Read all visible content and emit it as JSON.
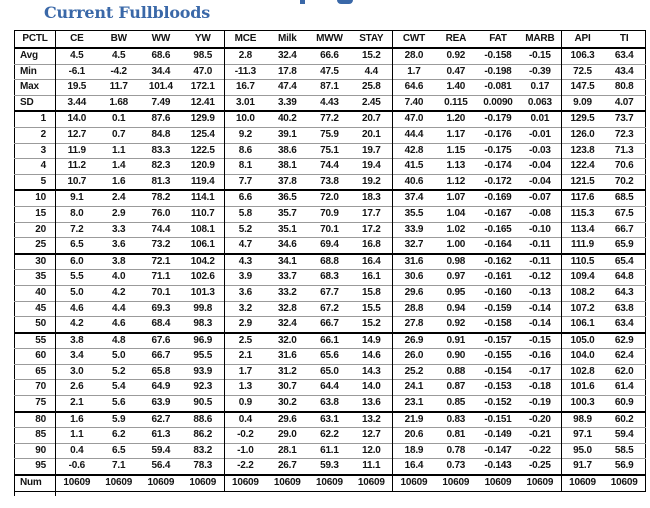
{
  "page": {
    "title": "Current Fullbloods"
  },
  "colors": {
    "title_blue": "#3a68a8",
    "table_text": "#141414",
    "group_border": "#000000",
    "row_border": "#9b9b9b"
  },
  "table": {
    "columns": [
      "PCTL",
      "CE",
      "BW",
      "WW",
      "YW",
      "MCE",
      "Milk",
      "MWW",
      "STAY",
      "CWT",
      "REA",
      "FAT",
      "MARB",
      "API",
      "TI"
    ],
    "rows": [
      {
        "label": "Avg",
        "values": [
          "4.5",
          "4.5",
          "68.6",
          "98.5",
          "2.8",
          "32.4",
          "66.6",
          "15.2",
          "28.0",
          "0.92",
          "-0.158",
          "-0.15",
          "106.3",
          "63.4"
        ]
      },
      {
        "label": "Min",
        "values": [
          "-6.1",
          "-4.2",
          "34.4",
          "47.0",
          "-11.3",
          "17.8",
          "47.5",
          "4.4",
          "1.7",
          "0.47",
          "-0.198",
          "-0.39",
          "72.5",
          "43.4"
        ]
      },
      {
        "label": "Max",
        "values": [
          "19.5",
          "11.7",
          "101.4",
          "172.1",
          "16.7",
          "47.4",
          "87.1",
          "25.8",
          "64.6",
          "1.40",
          "-0.081",
          "0.17",
          "147.5",
          "80.8"
        ]
      },
      {
        "label": "SD",
        "values": [
          "3.44",
          "1.68",
          "7.49",
          "12.41",
          "3.01",
          "3.39",
          "4.43",
          "2.45",
          "7.40",
          "0.115",
          "0.0090",
          "0.063",
          "9.09",
          "4.07"
        ]
      },
      {
        "label": "1",
        "group_start": true,
        "values": [
          "14.0",
          "0.1",
          "87.6",
          "129.9",
          "10.0",
          "40.2",
          "77.2",
          "20.7",
          "47.0",
          "1.20",
          "-0.179",
          "0.01",
          "129.5",
          "73.7"
        ]
      },
      {
        "label": "2",
        "values": [
          "12.7",
          "0.7",
          "84.8",
          "125.4",
          "9.2",
          "39.1",
          "75.9",
          "20.1",
          "44.4",
          "1.17",
          "-0.176",
          "-0.01",
          "126.0",
          "72.3"
        ]
      },
      {
        "label": "3",
        "values": [
          "11.9",
          "1.1",
          "83.3",
          "122.5",
          "8.6",
          "38.6",
          "75.1",
          "19.7",
          "42.8",
          "1.15",
          "-0.175",
          "-0.03",
          "123.8",
          "71.3"
        ]
      },
      {
        "label": "4",
        "values": [
          "11.2",
          "1.4",
          "82.3",
          "120.9",
          "8.1",
          "38.1",
          "74.4",
          "19.4",
          "41.5",
          "1.13",
          "-0.174",
          "-0.04",
          "122.4",
          "70.6"
        ]
      },
      {
        "label": "5",
        "values": [
          "10.7",
          "1.6",
          "81.3",
          "119.4",
          "7.7",
          "37.8",
          "73.8",
          "19.2",
          "40.6",
          "1.12",
          "-0.172",
          "-0.04",
          "121.5",
          "70.2"
        ]
      },
      {
        "label": "10",
        "group_start": true,
        "values": [
          "9.1",
          "2.4",
          "78.2",
          "114.1",
          "6.6",
          "36.5",
          "72.0",
          "18.3",
          "37.4",
          "1.07",
          "-0.169",
          "-0.07",
          "117.6",
          "68.5"
        ]
      },
      {
        "label": "15",
        "values": [
          "8.0",
          "2.9",
          "76.0",
          "110.7",
          "5.8",
          "35.7",
          "70.9",
          "17.7",
          "35.5",
          "1.04",
          "-0.167",
          "-0.08",
          "115.3",
          "67.5"
        ]
      },
      {
        "label": "20",
        "values": [
          "7.2",
          "3.3",
          "74.4",
          "108.1",
          "5.2",
          "35.1",
          "70.1",
          "17.2",
          "33.9",
          "1.02",
          "-0.165",
          "-0.10",
          "113.4",
          "66.7"
        ]
      },
      {
        "label": "25",
        "values": [
          "6.5",
          "3.6",
          "73.2",
          "106.1",
          "4.7",
          "34.6",
          "69.4",
          "16.8",
          "32.7",
          "1.00",
          "-0.164",
          "-0.11",
          "111.9",
          "65.9"
        ]
      },
      {
        "label": "30",
        "group_start": true,
        "values": [
          "6.0",
          "3.8",
          "72.1",
          "104.2",
          "4.3",
          "34.1",
          "68.8",
          "16.4",
          "31.6",
          "0.98",
          "-0.162",
          "-0.11",
          "110.5",
          "65.4"
        ]
      },
      {
        "label": "35",
        "values": [
          "5.5",
          "4.0",
          "71.1",
          "102.6",
          "3.9",
          "33.7",
          "68.3",
          "16.1",
          "30.6",
          "0.97",
          "-0.161",
          "-0.12",
          "109.4",
          "64.8"
        ]
      },
      {
        "label": "40",
        "values": [
          "5.0",
          "4.2",
          "70.1",
          "101.3",
          "3.6",
          "33.2",
          "67.7",
          "15.8",
          "29.6",
          "0.95",
          "-0.160",
          "-0.13",
          "108.2",
          "64.3"
        ]
      },
      {
        "label": "45",
        "values": [
          "4.6",
          "4.4",
          "69.3",
          "99.8",
          "3.2",
          "32.8",
          "67.2",
          "15.5",
          "28.8",
          "0.94",
          "-0.159",
          "-0.14",
          "107.2",
          "63.8"
        ]
      },
      {
        "label": "50",
        "values": [
          "4.2",
          "4.6",
          "68.4",
          "98.3",
          "2.9",
          "32.4",
          "66.7",
          "15.2",
          "27.8",
          "0.92",
          "-0.158",
          "-0.14",
          "106.1",
          "63.4"
        ]
      },
      {
        "label": "55",
        "group_start": true,
        "values": [
          "3.8",
          "4.8",
          "67.6",
          "96.9",
          "2.5",
          "32.0",
          "66.1",
          "14.9",
          "26.9",
          "0.91",
          "-0.157",
          "-0.15",
          "105.0",
          "62.9"
        ]
      },
      {
        "label": "60",
        "values": [
          "3.4",
          "5.0",
          "66.7",
          "95.5",
          "2.1",
          "31.6",
          "65.6",
          "14.6",
          "26.0",
          "0.90",
          "-0.155",
          "-0.16",
          "104.0",
          "62.4"
        ]
      },
      {
        "label": "65",
        "values": [
          "3.0",
          "5.2",
          "65.8",
          "93.9",
          "1.7",
          "31.2",
          "65.0",
          "14.3",
          "25.2",
          "0.88",
          "-0.154",
          "-0.17",
          "102.8",
          "62.0"
        ]
      },
      {
        "label": "70",
        "values": [
          "2.6",
          "5.4",
          "64.9",
          "92.3",
          "1.3",
          "30.7",
          "64.4",
          "14.0",
          "24.1",
          "0.87",
          "-0.153",
          "-0.18",
          "101.6",
          "61.4"
        ]
      },
      {
        "label": "75",
        "values": [
          "2.1",
          "5.6",
          "63.9",
          "90.5",
          "0.9",
          "30.2",
          "63.8",
          "13.6",
          "23.1",
          "0.85",
          "-0.152",
          "-0.19",
          "100.3",
          "60.9"
        ]
      },
      {
        "label": "80",
        "group_start": true,
        "values": [
          "1.6",
          "5.9",
          "62.7",
          "88.6",
          "0.4",
          "29.6",
          "63.1",
          "13.2",
          "21.9",
          "0.83",
          "-0.151",
          "-0.20",
          "98.9",
          "60.2"
        ]
      },
      {
        "label": "85",
        "values": [
          "1.1",
          "6.2",
          "61.3",
          "86.2",
          "-0.2",
          "29.0",
          "62.2",
          "12.7",
          "20.6",
          "0.81",
          "-0.149",
          "-0.21",
          "97.1",
          "59.4"
        ]
      },
      {
        "label": "90",
        "values": [
          "0.4",
          "6.5",
          "59.4",
          "83.2",
          "-1.0",
          "28.1",
          "61.1",
          "12.0",
          "18.9",
          "0.78",
          "-0.147",
          "-0.22",
          "95.0",
          "58.5"
        ]
      },
      {
        "label": "95",
        "values": [
          "-0.6",
          "7.1",
          "56.4",
          "78.3",
          "-2.2",
          "26.7",
          "59.3",
          "11.1",
          "16.4",
          "0.73",
          "-0.143",
          "-0.25",
          "91.7",
          "56.9"
        ]
      },
      {
        "label": "Num",
        "group_start": true,
        "values": [
          "10609",
          "10609",
          "10609",
          "10609",
          "10609",
          "10609",
          "10609",
          "10609",
          "10609",
          "10609",
          "10609",
          "10609",
          "10609",
          "10609"
        ]
      }
    ]
  }
}
